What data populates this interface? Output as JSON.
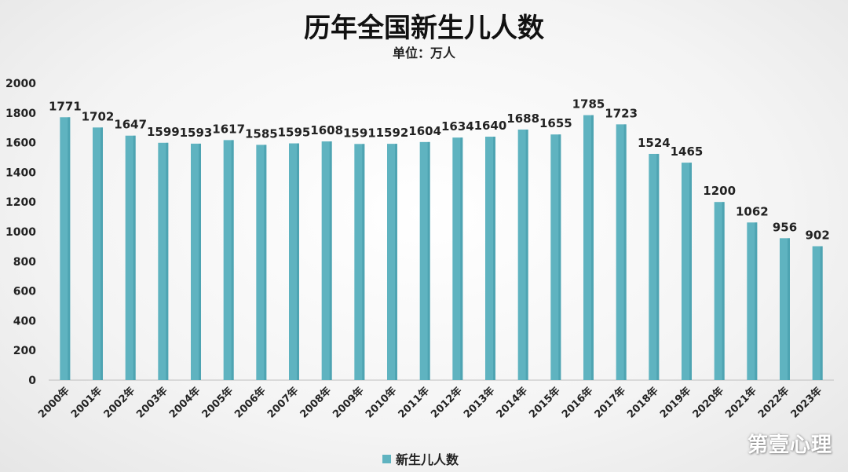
{
  "colors": {
    "bar": "#5fb3c0",
    "bar_dark": "#3f97a6",
    "axis": "#bfbfbf"
  },
  "watermark": "第壹心理",
  "chart_data": {
    "type": "bar",
    "title": "历年全国新生儿人数",
    "subtitle": "单位：万人",
    "categories": [
      "2000年",
      "2001年",
      "2002年",
      "2003年",
      "2004年",
      "2005年",
      "2006年",
      "2007年",
      "2008年",
      "2009年",
      "2010年",
      "2011年",
      "2012年",
      "2013年",
      "2014年",
      "2015年",
      "2016年",
      "2017年",
      "2018年",
      "2019年",
      "2020年",
      "2021年",
      "2022年",
      "2023年"
    ],
    "series": [
      {
        "name": "新生儿人数",
        "values": [
          1771,
          1702,
          1647,
          1599,
          1593,
          1617,
          1585,
          1595,
          1608,
          1591,
          1592,
          1604,
          1634,
          1640,
          1688,
          1655,
          1785,
          1723,
          1524,
          1465,
          1200,
          1062,
          956,
          902
        ]
      }
    ],
    "ylim": [
      0,
      2000
    ],
    "yticks": [
      0,
      200,
      400,
      600,
      800,
      1000,
      1200,
      1400,
      1600,
      1800,
      2000
    ],
    "grid": false,
    "legend": "bottom-center"
  }
}
